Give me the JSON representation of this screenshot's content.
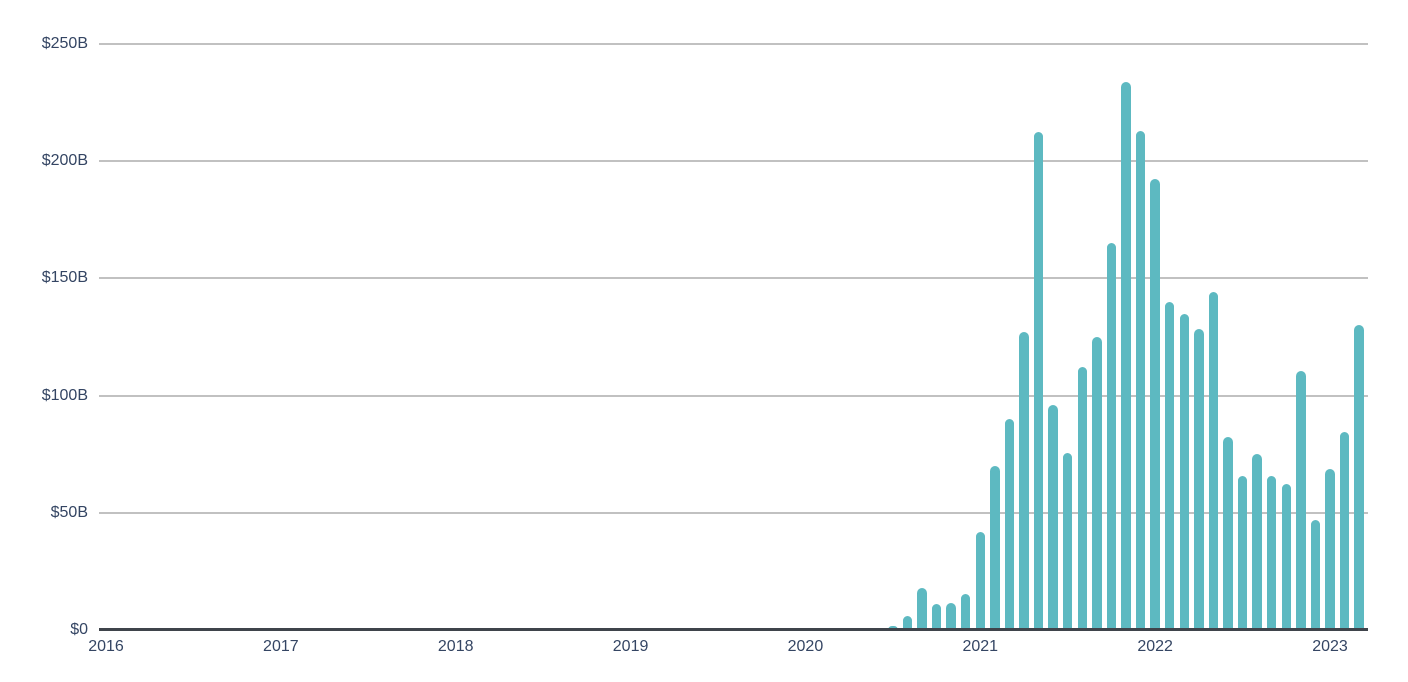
{
  "colors": {
    "background": "#ffffff",
    "bar": "#5db9c1",
    "gridline": "#c1c1c1",
    "x_axis_line": "#3f444b",
    "tick_label_text": "#344563"
  },
  "chart_data": {
    "type": "bar",
    "title": "",
    "legend": false,
    "grid": true,
    "unit": "USD billions (monthly values, labels formatted as $NB)",
    "x_axis": {
      "tick_labels": [
        "2016",
        "2017",
        "2018",
        "2019",
        "2020",
        "2021",
        "2022",
        "2023"
      ],
      "range_months": [
        "2016-01",
        "2023-03"
      ]
    },
    "y_axis": {
      "tick_labels": [
        "$0",
        "$50B",
        "$100B",
        "$150B",
        "$200B",
        "$250B"
      ],
      "tick_values": [
        0,
        50,
        100,
        150,
        200,
        250
      ],
      "min": 0,
      "max": 250
    },
    "baseline_value": 0,
    "values_by_month": {
      "2020-06": 0.8,
      "2020-07": 1.5,
      "2020-08": 6,
      "2020-09": 18,
      "2020-10": 11,
      "2020-11": 11.5,
      "2020-12": 15.5,
      "2021-01": 42,
      "2021-02": 70,
      "2021-03": 90,
      "2021-04": 127,
      "2021-05": 212.5,
      "2021-06": 96,
      "2021-07": 75.5,
      "2021-08": 112,
      "2021-09": 125,
      "2021-10": 165,
      "2021-11": 234,
      "2021-12": 213,
      "2022-01": 192.5,
      "2022-02": 140,
      "2022-03": 135,
      "2022-04": 128.5,
      "2022-05": 144,
      "2022-06": 82.5,
      "2022-07": 65.5,
      "2022-08": 75,
      "2022-09": 65.5,
      "2022-10": 62.5,
      "2022-11": 110.5,
      "2022-12": 47,
      "2023-01": 68.5,
      "2023-02": 84.5,
      "2023-03": 130
    }
  }
}
